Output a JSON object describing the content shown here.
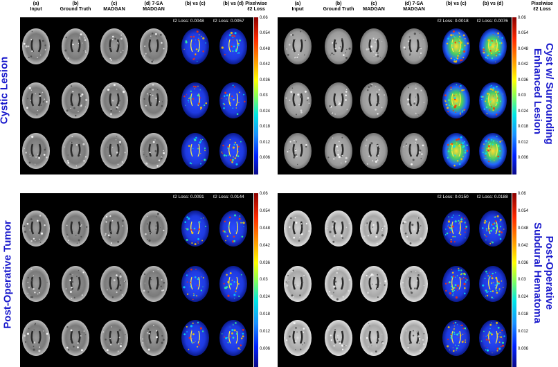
{
  "col_headers": [
    [
      "(a)",
      "Input"
    ],
    [
      "(b)",
      "Ground Truth"
    ],
    [
      "(c)",
      "MADGAN"
    ],
    [
      "(d) 7-SA",
      "MADGAN"
    ],
    [
      "(b) vs (c)",
      ""
    ],
    [
      "(b) vs (d)",
      ""
    ]
  ],
  "colorbar_title": [
    "Pixelwise",
    "ℓ2 Loss"
  ],
  "colorbar_ticks": [
    "0.06",
    "0.054",
    "0.048",
    "0.042",
    "0.036",
    "0.03",
    "0.024",
    "0.018",
    "0.012",
    "0.006"
  ],
  "panels": [
    {
      "label": "Cystic Lesion",
      "side": "left",
      "loss_c": "ℓ2 Loss: 0.0048",
      "loss_d": "ℓ2 Loss: 0.0057"
    },
    {
      "label": "Cyst w/ Surrounding Enhanced Lesion",
      "label_lines": [
        "Cyst w/ Surrounding",
        "Enhanced Lesion"
      ],
      "side": "right",
      "loss_c": "ℓ2 Loss: 0.0018",
      "loss_d": "ℓ2 Loss: 0.0076"
    },
    {
      "label": "Post-Operative Tumor",
      "side": "left",
      "loss_c": "ℓ2 Loss: 0.0091",
      "loss_d": "ℓ2 Loss: 0.0144"
    },
    {
      "label": "Post-Operative Subdural Hematoma",
      "label_lines": [
        "Post-Operative",
        "Subdural Hematoma"
      ],
      "side": "right",
      "loss_c": "ℓ2 Loss: 0.0150",
      "loss_d": "ℓ2 Loss: 0.0188"
    }
  ],
  "colors": {
    "label_blue": "#1a1acc",
    "panel_bg": "#000000"
  }
}
